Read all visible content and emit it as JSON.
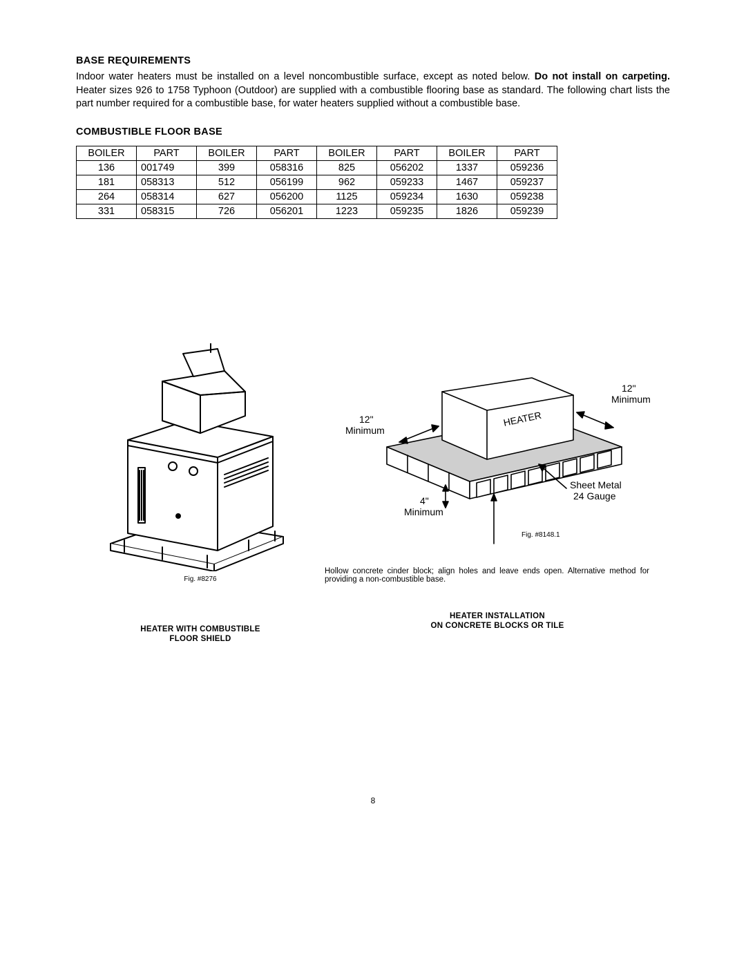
{
  "headings": {
    "base_req": "BASE REQUIREMENTS",
    "comb_base": "COMBUSTIBLE FLOOR BASE"
  },
  "paragraph": {
    "pre": "Indoor water heaters must be installed on a level noncombustible surface, except as noted below.  ",
    "bold": "Do not install on carpeting.",
    "post": "  Heater sizes 926 to 1758 Typhoon (Outdoor) are supplied with a combustible flooring base as standard.  The following chart lists the part number required for a combustible base, for water heaters supplied without a combustible base."
  },
  "table": {
    "headers": [
      "BOILER",
      "PART",
      "BOILER",
      "PART",
      "BOILER",
      "PART",
      "BOILER",
      "PART"
    ],
    "rows": [
      [
        "136",
        "001749",
        "399",
        "058316",
        "825",
        "056202",
        "1337",
        "059236"
      ],
      [
        "181",
        "058313",
        "512",
        "056199",
        "962",
        "059233",
        "1467",
        "059237"
      ],
      [
        "264",
        "058314",
        "627",
        "056200",
        "1125",
        "059234",
        "1630",
        "059238"
      ],
      [
        "331",
        "058315",
        "726",
        "056201",
        "1223",
        "059235",
        "1826",
        "059239"
      ]
    ],
    "border_color": "#000000"
  },
  "figures": {
    "left": {
      "fig_label": "Fig. #8276",
      "caption_line1": "HEATER WITH COMBUSTIBLE",
      "caption_line2": "FLOOR SHIELD"
    },
    "right": {
      "fig_label": "Fig. #8148.1",
      "labels": {
        "min_left_1": "12\"",
        "min_left_2": "Minimum",
        "min_right_1": "12\"",
        "min_right_2": "Minimum",
        "four_1": "4\"",
        "four_2": "Minimum",
        "sheet_1": "Sheet Metal",
        "sheet_2": "24 Gauge",
        "heater": "HEATER"
      },
      "note": "Hollow concrete cinder block; align holes and leave ends open. Alternative method for providing a non-combustible base.",
      "caption_line1": "HEATER INSTALLATION",
      "caption_line2": "ON CONCRETE BLOCKS OR TILE"
    }
  },
  "page_number": "8",
  "style": {
    "stroke": "#000000",
    "fill_bg": "#ffffff",
    "grid_gray": "#666666"
  }
}
